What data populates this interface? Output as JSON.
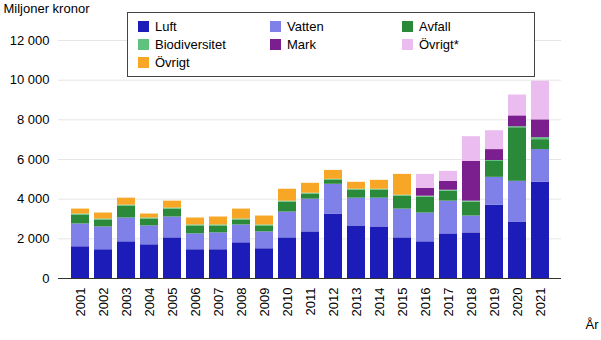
{
  "chart_data": {
    "type": "bar",
    "stacked": true,
    "grid": true,
    "legend": "top",
    "ylabel": "Miljoner kronor",
    "xlabel": "År",
    "categories": [
      "2001",
      "2002",
      "2003",
      "2004",
      "2005",
      "2006",
      "2007",
      "2008",
      "2009",
      "2010",
      "2011",
      "2012",
      "2013",
      "2014",
      "2015",
      "2016",
      "2017",
      "2018",
      "2019",
      "2020",
      "2021"
    ],
    "ylim": [
      0,
      12000
    ],
    "yticks": [
      0,
      {
        "value": 2000,
        "label": "2 000"
      },
      {
        "value": 4000,
        "label": "4 000"
      },
      {
        "value": 6000,
        "label": "6 000"
      },
      {
        "value": 8000,
        "label": "8 000"
      },
      {
        "value": 10000,
        "label": "10 000"
      },
      {
        "value": 12000,
        "label": "12 000"
      }
    ],
    "series": [
      {
        "name": "Luft",
        "color": "#1c1cb8",
        "values": [
          1600,
          1450,
          1850,
          1700,
          2050,
          1450,
          1450,
          1800,
          1500,
          2050,
          2350,
          3250,
          2650,
          2600,
          2050,
          1850,
          2250,
          2300,
          3700,
          2850,
          4850
        ]
      },
      {
        "name": "Vatten",
        "color": "#7f80e8",
        "values": [
          1150,
          1150,
          1200,
          950,
          1050,
          800,
          850,
          900,
          850,
          1300,
          1650,
          1500,
          1400,
          1450,
          1450,
          1450,
          1650,
          850,
          1400,
          2050,
          1650
        ]
      },
      {
        "name": "Avfall",
        "color": "#2a8a3a",
        "values": [
          450,
          350,
          600,
          350,
          400,
          400,
          350,
          250,
          300,
          500,
          250,
          200,
          400,
          400,
          650,
          800,
          500,
          700,
          800,
          2700,
          500
        ]
      },
      {
        "name": "Biodiversitet",
        "color": "#5fc27f",
        "values": [
          50,
          50,
          50,
          50,
          50,
          50,
          50,
          50,
          50,
          50,
          50,
          50,
          50,
          50,
          50,
          50,
          50,
          50,
          50,
          50,
          100
        ]
      },
      {
        "name": "Mark",
        "color": "#7b1f8e",
        "values": [
          0,
          0,
          0,
          0,
          0,
          0,
          0,
          0,
          0,
          0,
          0,
          0,
          0,
          0,
          0,
          400,
          450,
          2000,
          550,
          550,
          900
        ]
      },
      {
        "name": "Övrigt*",
        "color": "#ebbcf0",
        "values": [
          0,
          0,
          0,
          0,
          0,
          0,
          0,
          0,
          0,
          0,
          0,
          0,
          0,
          0,
          0,
          700,
          500,
          1250,
          950,
          1050,
          1950
        ]
      },
      {
        "name": "Övrigt",
        "color": "#f7a625",
        "values": [
          250,
          300,
          350,
          200,
          350,
          350,
          400,
          500,
          450,
          600,
          500,
          450,
          350,
          450,
          1050,
          0,
          0,
          0,
          0,
          0,
          0
        ]
      }
    ]
  }
}
